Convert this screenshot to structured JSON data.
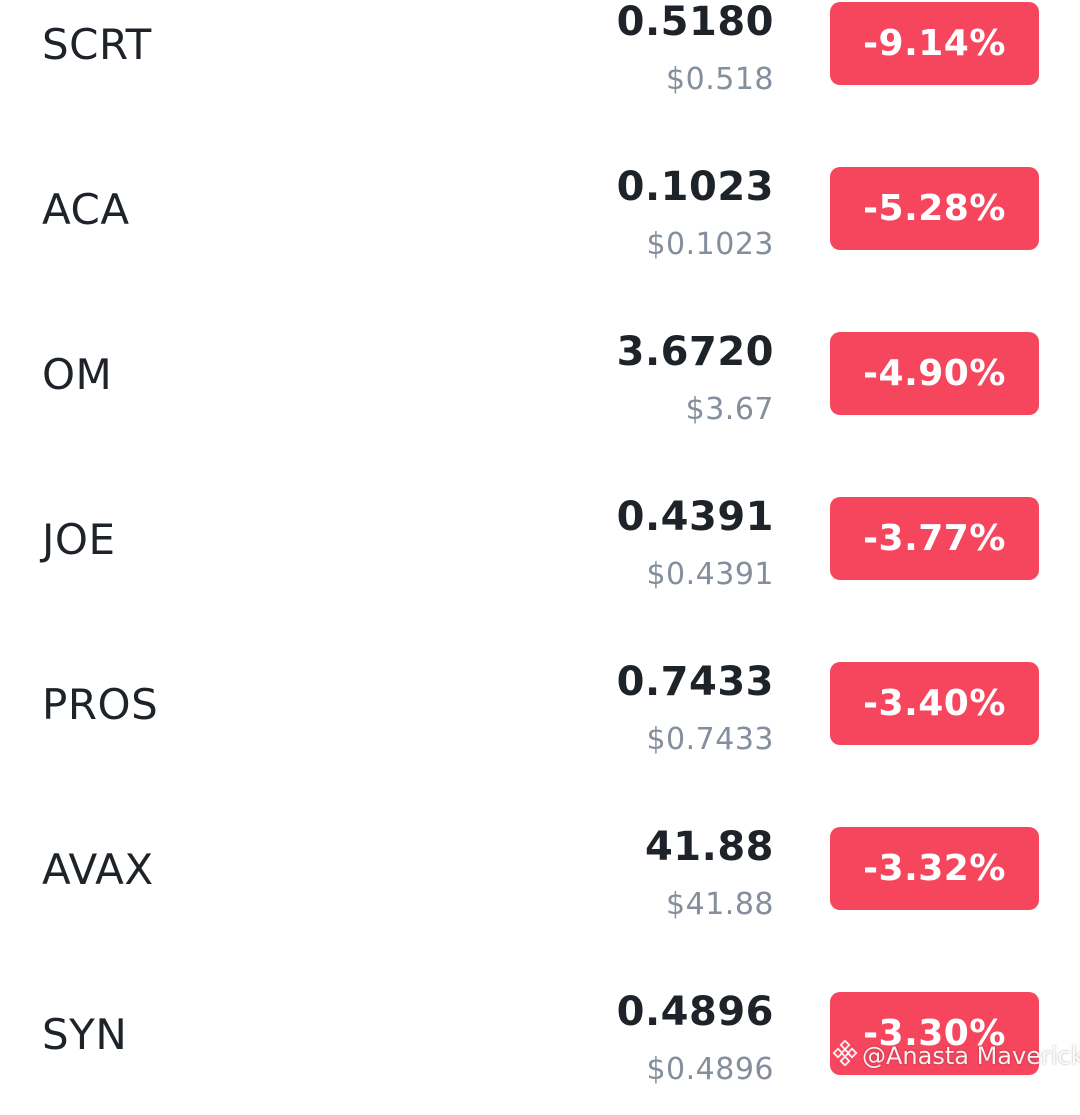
{
  "market": {
    "rows": [
      {
        "symbol": "SCRT",
        "price": "0.5180",
        "fiat": "$0.518",
        "change": "-9.14%"
      },
      {
        "symbol": "ACA",
        "price": "0.1023",
        "fiat": "$0.1023",
        "change": "-5.28%"
      },
      {
        "symbol": "OM",
        "price": "3.6720",
        "fiat": "$3.67",
        "change": "-4.90%"
      },
      {
        "symbol": "JOE",
        "price": "0.4391",
        "fiat": "$0.4391",
        "change": "-3.77%"
      },
      {
        "symbol": "PROS",
        "price": "0.7433",
        "fiat": "$0.7433",
        "change": "-3.40%"
      },
      {
        "symbol": "AVAX",
        "price": "41.88",
        "fiat": "$41.88",
        "change": "-3.32%"
      },
      {
        "symbol": "SYN",
        "price": "0.4896",
        "fiat": "$0.4896",
        "change": "-3.30%"
      }
    ]
  },
  "colors": {
    "negative": "#f6465d",
    "text_primary": "#1e2329",
    "text_secondary": "#848e9c"
  },
  "watermark": {
    "text": "@Anasta Maverick",
    "icon": "binance-logo-icon"
  }
}
